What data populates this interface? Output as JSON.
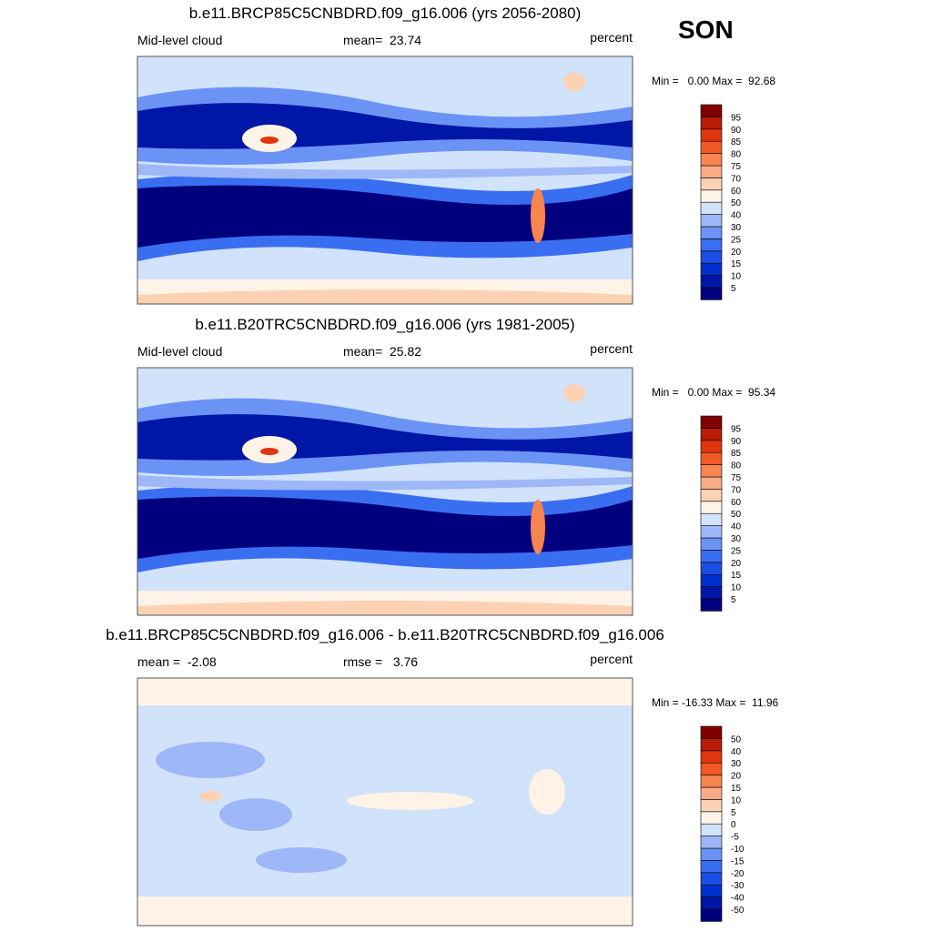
{
  "season": "SON",
  "colorbar_colors": [
    "#00007f",
    "#0016a6",
    "#0030cc",
    "#1a4fe6",
    "#3a6ef0",
    "#6b93f5",
    "#9db7f7",
    "#d1e2fb",
    "#fef3e6",
    "#fcd1b4",
    "#f9ab88",
    "#f8844f",
    "#f25a25",
    "#e0350e",
    "#b91c06",
    "#800000"
  ],
  "panels": [
    {
      "title": "b.e11.BRCP85C5CNBDRD.f09_g16.006 (yrs 2056-2080)",
      "left": "Mid-level cloud",
      "center": "mean=  23.74",
      "right": "percent",
      "minmax": "Min =   0.00 Max =  92.68",
      "colorbar": {
        "labels": [
          95,
          90,
          85,
          80,
          75,
          70,
          60,
          50,
          40,
          30,
          25,
          20,
          15,
          10,
          5
        ]
      }
    },
    {
      "title": "b.e11.B20TRC5CNBDRD.f09_g16.006 (yrs 1981-2005)",
      "left": "Mid-level cloud",
      "center": "mean=  25.82",
      "right": "percent",
      "minmax": "Min =   0.00 Max =  95.34",
      "colorbar": {
        "labels": [
          95,
          90,
          85,
          80,
          75,
          70,
          60,
          50,
          40,
          30,
          25,
          20,
          15,
          10,
          5
        ]
      }
    },
    {
      "title": "b.e11.BRCP85C5CNBDRD.f09_g16.006 - b.e11.B20TRC5CNBDRD.f09_g16.006",
      "left": "mean =  -2.08",
      "center": "rmse =   3.76",
      "right": "percent",
      "minmax": "Min = -16.33 Max =  11.96",
      "colorbar": {
        "labels": [
          50,
          40,
          30,
          20,
          15,
          10,
          5,
          0,
          -5,
          -10,
          -15,
          -20,
          -30,
          -40,
          -50
        ]
      }
    }
  ]
}
